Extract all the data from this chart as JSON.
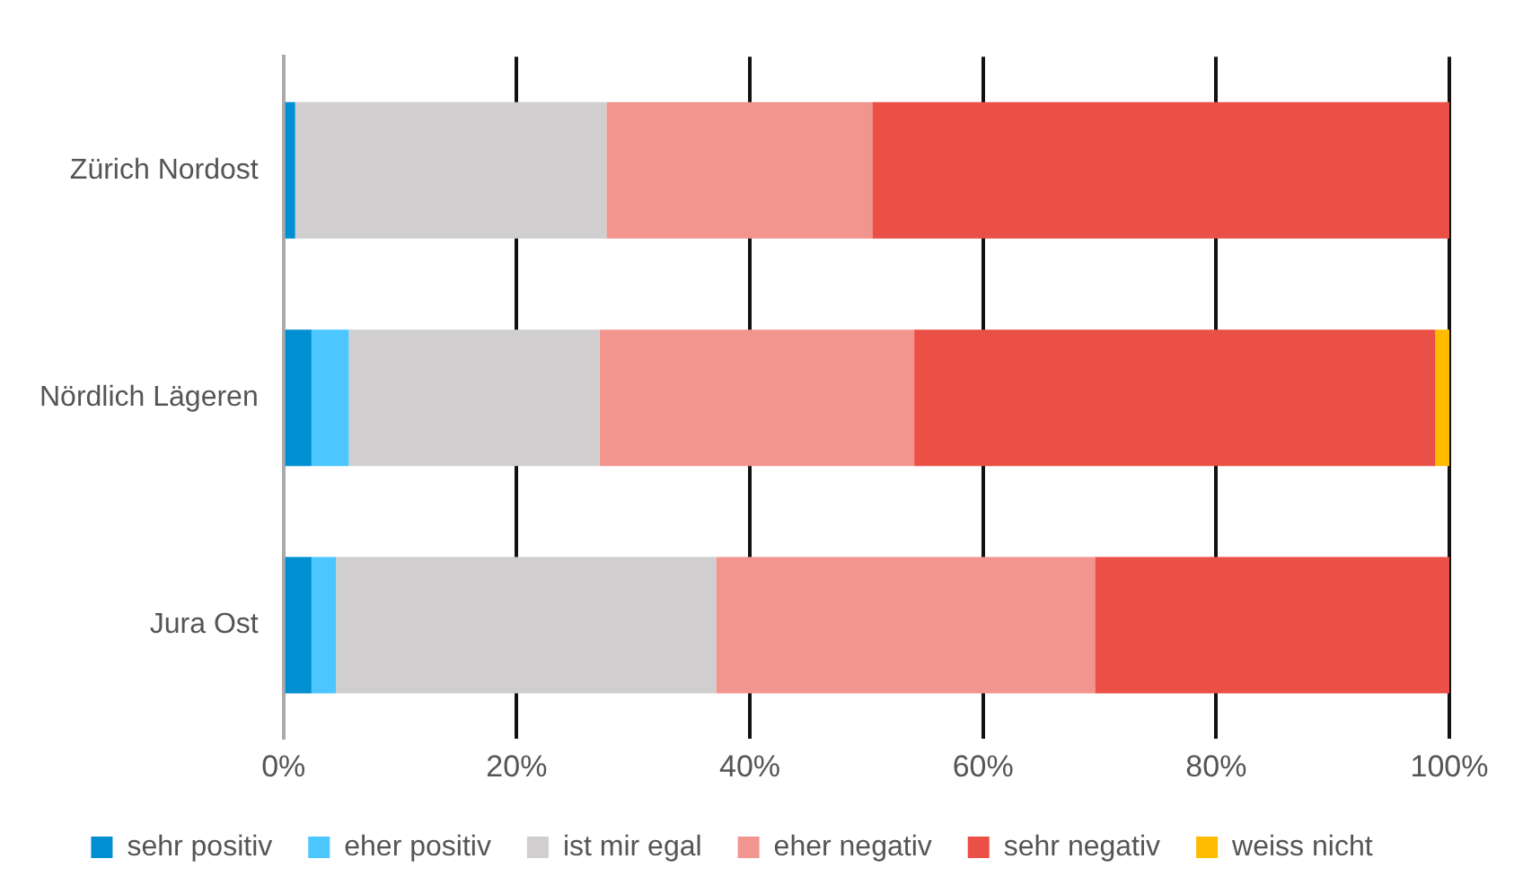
{
  "chart_data": {
    "type": "bar",
    "orientation": "horizontal",
    "stacked": true,
    "categories": [
      "Zürich Nordost",
      "Nördlich Lägeren",
      "Jura Ost"
    ],
    "series": [
      {
        "name": "sehr positiv",
        "color": "#008fd0",
        "values": [
          1.0,
          2.4,
          2.4
        ]
      },
      {
        "name": "eher positiv",
        "color": "#4cc6ff",
        "values": [
          0,
          3.2,
          2.1
        ]
      },
      {
        "name": "ist mir egal",
        "color": "#d0cece",
        "values": [
          26.7,
          21.5,
          32.6
        ]
      },
      {
        "name": "eher negativ",
        "color": "#f2958e",
        "values": [
          22.8,
          27.0,
          32.5
        ]
      },
      {
        "name": "sehr negativ",
        "color": "#ea5046",
        "values": [
          49.5,
          44.7,
          30.4
        ]
      },
      {
        "name": "weiss nicht",
        "color": "#ffbb00",
        "values": [
          0,
          1.2,
          0
        ]
      }
    ],
    "xlim": [
      0,
      100
    ],
    "xticks": [
      {
        "value": 0,
        "label": "0%"
      },
      {
        "value": 20,
        "label": "20%"
      },
      {
        "value": 40,
        "label": "40%"
      },
      {
        "value": 60,
        "label": "60%"
      },
      {
        "value": 80,
        "label": "80%"
      },
      {
        "value": 100,
        "label": "100%"
      }
    ],
    "grid": "x",
    "legend": "bottom"
  }
}
